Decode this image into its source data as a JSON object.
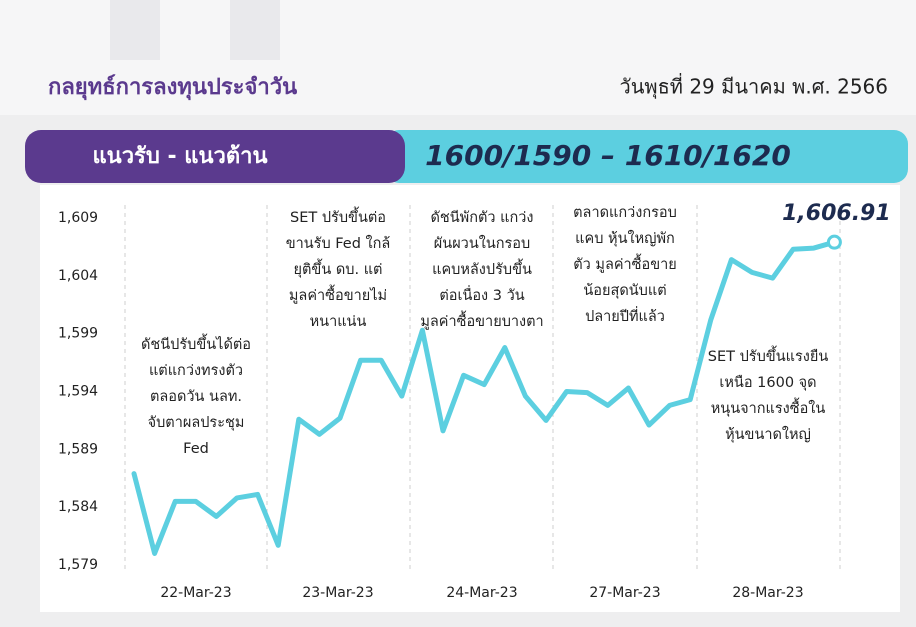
{
  "header": {
    "title": "กลยุทธ์การลงทุนประจำวัน",
    "date": "วันพุธที่ 29 มีนาคม พ.ศ. 2566"
  },
  "banner": {
    "label": "แนวรับ - แนวต้าน",
    "levels": "1600/1590 – 1610/1620"
  },
  "chart_data": {
    "type": "line",
    "categories": [
      "22-Mar-23",
      "23-Mar-23",
      "24-Mar-23",
      "27-Mar-23",
      "28-Mar-23"
    ],
    "color": "#5ccfe0",
    "values": [
      [
        1586.9,
        1580.0,
        1584.5,
        1584.5,
        1583.2,
        1584.8,
        1585.1
      ],
      [
        1580.7,
        1591.6,
        1590.3,
        1591.7,
        1596.7,
        1596.7,
        1593.6
      ],
      [
        1599.3,
        1590.6,
        1595.4,
        1594.6,
        1597.8,
        1593.6,
        1591.5
      ],
      [
        1594.0,
        1593.9,
        1592.8,
        1594.3,
        1591.1,
        1592.8,
        1593.3
      ],
      [
        1600.2,
        1605.4,
        1604.3,
        1603.8,
        1606.3,
        1606.4,
        1606.91
      ]
    ],
    "last_value_label": "1,606.91",
    "ylim": [
      1579,
      1609
    ],
    "yticks": [
      {
        "value": 1579,
        "label": "1,579"
      },
      {
        "value": 1584,
        "label": "1,584"
      },
      {
        "value": 1589,
        "label": "1,589"
      },
      {
        "value": 1594,
        "label": "1,594"
      },
      {
        "value": 1599,
        "label": "1,599"
      },
      {
        "value": 1604,
        "label": "1,604"
      },
      {
        "value": 1609,
        "label": "1,609"
      }
    ],
    "annotations": [
      [
        "ดัชนีปรับขึ้นได้ต่อ",
        "แต่แกว่งทรงตัว",
        "ตลอดวัน นลท.",
        "จับตาผลประชุม",
        "Fed"
      ],
      [
        "SET ปรับขึ้นต่อ",
        "ขานรับ Fed ใกล้",
        "ยุติขึ้น ดบ. แต่",
        "มูลค่าซื้อขายไม่",
        "หนาแน่น"
      ],
      [
        "ดัชนีพักตัว แกว่ง",
        "ผันผวนในกรอบ",
        "แคบหลังปรับขึ้น",
        "ต่อเนื่อง 3 วัน",
        "มูลค่าซื้อขายบางตา"
      ],
      [
        "ตลาดแกว่งกรอบ",
        "แคบ หุ้นใหญ่พัก",
        "ตัว มูลค่าซื้อขาย",
        "น้อยสุดนับแต่",
        "ปลายปีที่แล้ว"
      ],
      [
        "SET ปรับขึ้นแรงยืน",
        "เหนือ 1600 จุด",
        "หนุนจากแรงซื้อใน",
        "หุ้นขนาดใหญ่"
      ]
    ]
  }
}
